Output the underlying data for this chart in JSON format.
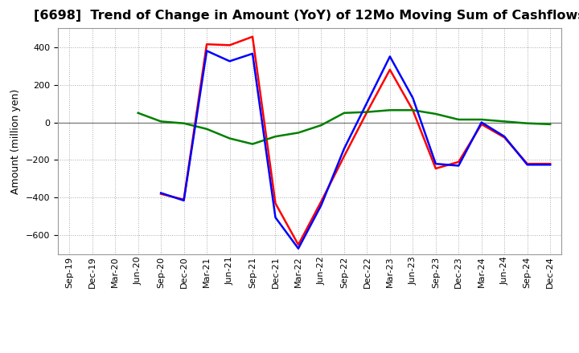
{
  "title": "[6698]  Trend of Change in Amount (YoY) of 12Mo Moving Sum of Cashflows",
  "ylabel": "Amount (million yen)",
  "x_labels": [
    "Sep-19",
    "Dec-19",
    "Mar-20",
    "Jun-20",
    "Sep-20",
    "Dec-20",
    "Mar-21",
    "Jun-21",
    "Sep-21",
    "Dec-21",
    "Mar-22",
    "Jun-22",
    "Sep-22",
    "Dec-22",
    "Mar-23",
    "Jun-23",
    "Sep-23",
    "Dec-23",
    "Mar-24",
    "Jun-24",
    "Sep-24",
    "Dec-24"
  ],
  "operating": [
    null,
    null,
    null,
    null,
    -380,
    -410,
    415,
    410,
    455,
    -430,
    -650,
    -420,
    -180,
    55,
    280,
    65,
    -245,
    -210,
    -10,
    -80,
    -220,
    -220
  ],
  "investing": [
    null,
    null,
    null,
    50,
    5,
    -5,
    -35,
    -85,
    -115,
    -75,
    -55,
    -15,
    50,
    55,
    65,
    65,
    45,
    15,
    15,
    5,
    -5,
    -10
  ],
  "free": [
    null,
    null,
    null,
    null,
    -375,
    -415,
    380,
    325,
    365,
    -505,
    -670,
    -440,
    -140,
    105,
    350,
    130,
    -220,
    -230,
    0,
    -75,
    -225,
    -225
  ],
  "operating_color": "#ff0000",
  "investing_color": "#008000",
  "free_color": "#0000ff",
  "ylim": [
    -700,
    500
  ],
  "yticks": [
    -600,
    -400,
    -200,
    0,
    200,
    400
  ],
  "bg_color": "#ffffff",
  "plot_bg_color": "#ffffff",
  "grid_color": "#aaaaaa",
  "zero_line_color": "#808080",
  "title_fontsize": 11.5,
  "axis_label_fontsize": 9,
  "tick_fontsize": 8,
  "legend_fontsize": 9.5,
  "line_width": 1.8
}
